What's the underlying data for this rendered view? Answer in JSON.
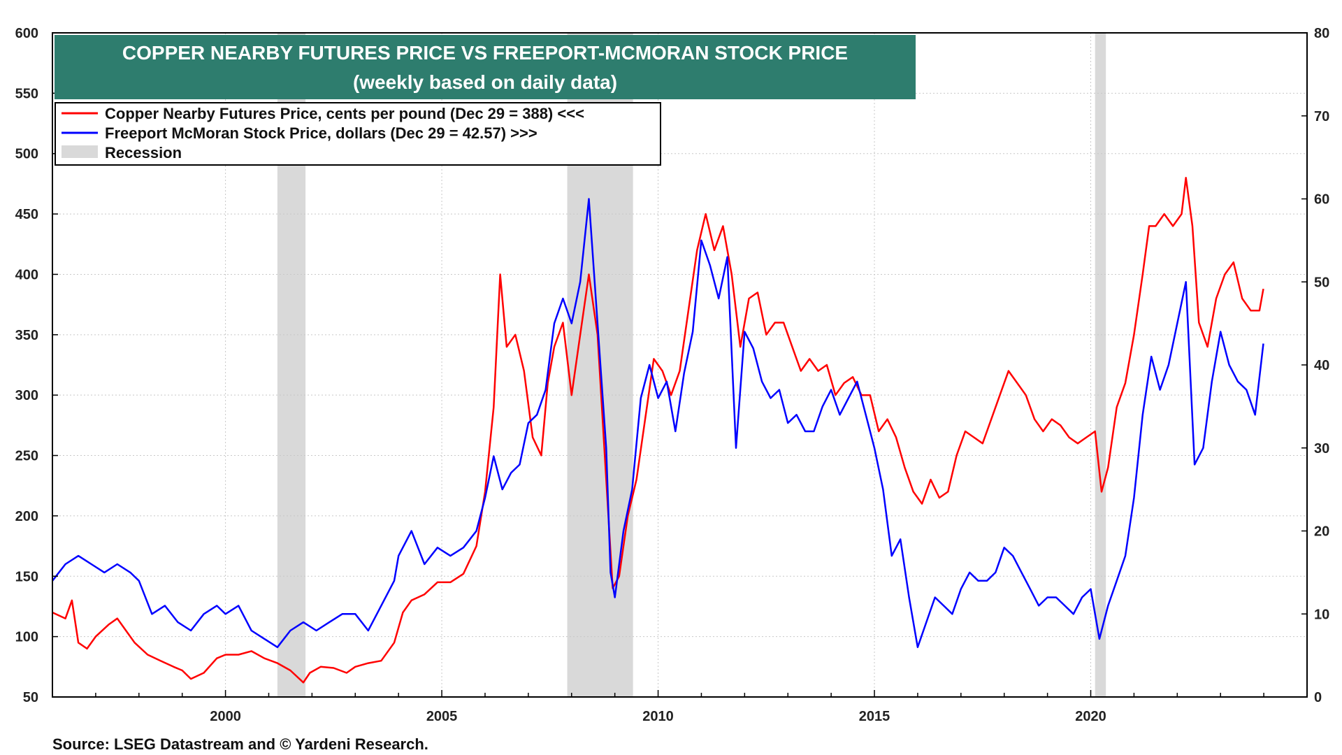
{
  "chart_data": {
    "type": "line",
    "title": "COPPER NEARBY FUTURES PRICE VS FREEPORT-MCMORAN STOCK PRICE",
    "subtitle": "(weekly based on daily data)",
    "source": "Source: LSEG Datastream and © Yardeni Research.",
    "x_range": [
      1996.0,
      2025.0
    ],
    "x_ticks": [
      2000,
      2005,
      2010,
      2015,
      2020
    ],
    "x_tick_labels": [
      "2000",
      "2005",
      "2010",
      "2015",
      "2020"
    ],
    "y_left": {
      "range": [
        50,
        600
      ],
      "ticks": [
        50,
        100,
        150,
        200,
        250,
        300,
        350,
        400,
        450,
        500,
        550,
        600
      ],
      "tick_labels": [
        "50",
        "100",
        "150",
        "200",
        "250",
        "300",
        "350",
        "400",
        "450",
        "500",
        "550",
        "600"
      ]
    },
    "y_right": {
      "range": [
        0,
        80
      ],
      "ticks": [
        0,
        10,
        20,
        30,
        40,
        50,
        60,
        70,
        80
      ],
      "tick_labels": [
        "0",
        "10",
        "20",
        "30",
        "40",
        "50",
        "60",
        "70",
        "80"
      ]
    },
    "grid": true,
    "legend_position": "top-left",
    "recessions": [
      [
        2001.2,
        2001.85
      ],
      [
        2007.9,
        2009.42
      ],
      [
        2020.1,
        2020.35
      ]
    ],
    "series": [
      {
        "name": "Copper Nearby Futures Price, cents per pound (Dec 29 = 388) <<<",
        "axis": "left",
        "color": "#ff0000",
        "x": [
          1996.0,
          1996.3,
          1996.45,
          1996.6,
          1996.8,
          1997.0,
          1997.3,
          1997.5,
          1997.7,
          1997.9,
          1998.2,
          1998.5,
          1998.8,
          1999.0,
          1999.2,
          1999.5,
          1999.8,
          2000.0,
          2000.3,
          2000.6,
          2000.9,
          2001.2,
          2001.5,
          2001.8,
          2001.95,
          2002.2,
          2002.5,
          2002.8,
          2003.0,
          2003.3,
          2003.6,
          2003.9,
          2004.1,
          2004.3,
          2004.6,
          2004.9,
          2005.2,
          2005.5,
          2005.8,
          2006.0,
          2006.2,
          2006.35,
          2006.5,
          2006.7,
          2006.9,
          2007.1,
          2007.3,
          2007.45,
          2007.6,
          2007.8,
          2008.0,
          2008.2,
          2008.4,
          2008.6,
          2008.8,
          2008.95,
          2009.1,
          2009.3,
          2009.5,
          2009.7,
          2009.9,
          2010.1,
          2010.3,
          2010.5,
          2010.7,
          2010.9,
          2011.1,
          2011.3,
          2011.5,
          2011.7,
          2011.9,
          2012.1,
          2012.3,
          2012.5,
          2012.7,
          2012.9,
          2013.1,
          2013.3,
          2013.5,
          2013.7,
          2013.9,
          2014.1,
          2014.3,
          2014.5,
          2014.7,
          2014.9,
          2015.1,
          2015.3,
          2015.5,
          2015.7,
          2015.9,
          2016.1,
          2016.3,
          2016.5,
          2016.7,
          2016.9,
          2017.1,
          2017.3,
          2017.5,
          2017.7,
          2017.9,
          2018.1,
          2018.3,
          2018.5,
          2018.7,
          2018.9,
          2019.1,
          2019.3,
          2019.5,
          2019.7,
          2019.9,
          2020.1,
          2020.25,
          2020.4,
          2020.6,
          2020.8,
          2021.0,
          2021.2,
          2021.35,
          2021.5,
          2021.7,
          2021.9,
          2022.1,
          2022.2,
          2022.35,
          2022.5,
          2022.7,
          2022.9,
          2023.1,
          2023.3,
          2023.5,
          2023.7,
          2023.9,
          2023.99
        ],
        "values": [
          120,
          115,
          130,
          95,
          90,
          100,
          110,
          115,
          105,
          95,
          85,
          80,
          75,
          72,
          65,
          70,
          82,
          85,
          85,
          88,
          82,
          78,
          72,
          62,
          70,
          75,
          74,
          70,
          75,
          78,
          80,
          95,
          120,
          130,
          135,
          145,
          145,
          152,
          175,
          220,
          290,
          400,
          340,
          350,
          320,
          265,
          250,
          310,
          340,
          360,
          300,
          350,
          400,
          350,
          230,
          140,
          150,
          200,
          230,
          280,
          330,
          320,
          300,
          320,
          370,
          420,
          450,
          420,
          440,
          400,
          340,
          380,
          385,
          350,
          360,
          360,
          340,
          320,
          330,
          320,
          325,
          300,
          310,
          315,
          300,
          300,
          270,
          280,
          265,
          240,
          220,
          210,
          230,
          215,
          220,
          250,
          270,
          265,
          260,
          280,
          300,
          320,
          310,
          300,
          280,
          270,
          280,
          275,
          265,
          260,
          265,
          270,
          220,
          240,
          290,
          310,
          350,
          400,
          440,
          440,
          450,
          440,
          450,
          480,
          440,
          360,
          340,
          380,
          400,
          410,
          380,
          370,
          370,
          388
        ]
      },
      {
        "name": "Freeport McMoran Stock Price, dollars (Dec 29 = 42.57) >>>",
        "axis": "right",
        "color": "#0000ff",
        "x": [
          1996.0,
          1996.3,
          1996.6,
          1996.9,
          1997.2,
          1997.5,
          1997.8,
          1998.0,
          1998.3,
          1998.6,
          1998.9,
          1999.2,
          1999.5,
          1999.8,
          2000.0,
          2000.3,
          2000.6,
          2000.9,
          2001.2,
          2001.5,
          2001.8,
          2002.1,
          2002.4,
          2002.7,
          2003.0,
          2003.3,
          2003.6,
          2003.9,
          2004.0,
          2004.3,
          2004.6,
          2004.9,
          2005.2,
          2005.5,
          2005.8,
          2006.0,
          2006.2,
          2006.4,
          2006.6,
          2006.8,
          2007.0,
          2007.2,
          2007.4,
          2007.6,
          2007.8,
          2008.0,
          2008.2,
          2008.4,
          2008.6,
          2008.8,
          2008.9,
          2009.0,
          2009.2,
          2009.4,
          2009.6,
          2009.8,
          2010.0,
          2010.2,
          2010.4,
          2010.6,
          2010.8,
          2011.0,
          2011.2,
          2011.4,
          2011.6,
          2011.8,
          2012.0,
          2012.2,
          2012.4,
          2012.6,
          2012.8,
          2013.0,
          2013.2,
          2013.4,
          2013.6,
          2013.8,
          2014.0,
          2014.2,
          2014.4,
          2014.6,
          2014.8,
          2015.0,
          2015.2,
          2015.4,
          2015.6,
          2015.8,
          2016.0,
          2016.2,
          2016.4,
          2016.6,
          2016.8,
          2017.0,
          2017.2,
          2017.4,
          2017.6,
          2017.8,
          2018.0,
          2018.2,
          2018.4,
          2018.6,
          2018.8,
          2019.0,
          2019.2,
          2019.4,
          2019.6,
          2019.8,
          2020.0,
          2020.2,
          2020.4,
          2020.6,
          2020.8,
          2021.0,
          2021.2,
          2021.4,
          2021.6,
          2021.8,
          2022.0,
          2022.2,
          2022.4,
          2022.6,
          2022.8,
          2023.0,
          2023.2,
          2023.4,
          2023.6,
          2023.8,
          2023.99
        ],
        "values": [
          14,
          16,
          17,
          16,
          15,
          16,
          15,
          14,
          10,
          11,
          9,
          8,
          10,
          11,
          10,
          11,
          8,
          7,
          6,
          8,
          9,
          8,
          9,
          10,
          10,
          8,
          11,
          14,
          17,
          20,
          16,
          18,
          17,
          18,
          20,
          24,
          29,
          25,
          27,
          28,
          33,
          34,
          37,
          45,
          48,
          45,
          50,
          60,
          45,
          30,
          15,
          12,
          20,
          25,
          36,
          40,
          36,
          38,
          32,
          39,
          44,
          55,
          52,
          48,
          53,
          30,
          44,
          42,
          38,
          36,
          37,
          33,
          34,
          32,
          32,
          35,
          37,
          34,
          36,
          38,
          34,
          30,
          25,
          17,
          19,
          12,
          6,
          9,
          12,
          11,
          10,
          13,
          15,
          14,
          14,
          15,
          18,
          17,
          15,
          13,
          11,
          12,
          12,
          11,
          10,
          12,
          13,
          7,
          11,
          14,
          17,
          24,
          34,
          41,
          37,
          40,
          45,
          50,
          28,
          30,
          38,
          44,
          40,
          38,
          37,
          34,
          42.57
        ]
      }
    ]
  },
  "legend": {
    "recession_label": "Recession"
  },
  "colors": {
    "title_bg": "#2e7d6e",
    "recession": "#d9d9d9",
    "copper": "#ff0000",
    "freeport": "#0000ff"
  }
}
